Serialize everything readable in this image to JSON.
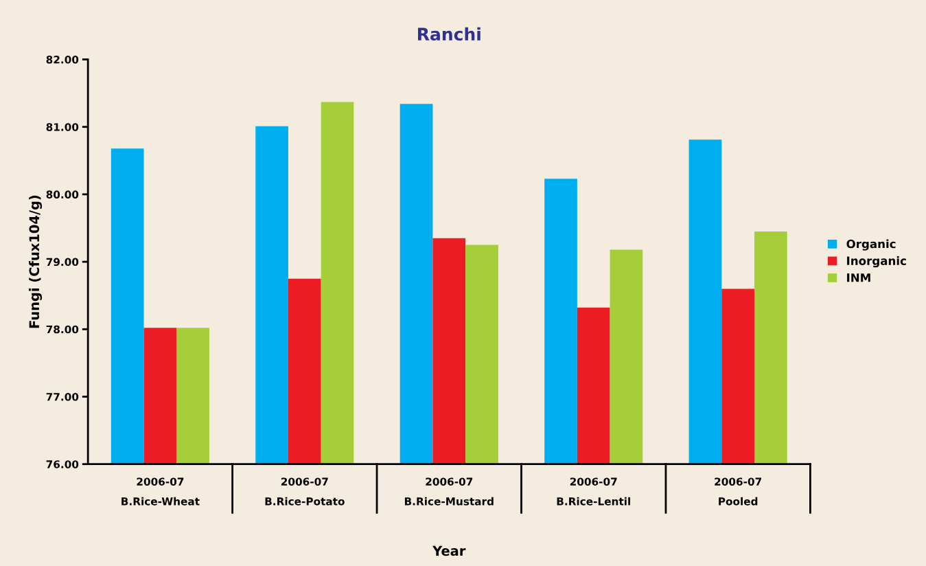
{
  "chart_data": {
    "type": "bar",
    "title": "Ranchi",
    "xlabel": "Year",
    "ylabel": "Fungi (Cfux104/g)",
    "categories": [
      "2006-07\nB.Rice-Wheat",
      "2006-07\nB.Rice-Potato",
      "2006-07\nB.Rice-Mustard",
      "2006-07\nB.Rice-Lentil",
      "2006-07\nPooled"
    ],
    "series": [
      {
        "name": "Organic",
        "color": "#00aeef",
        "values": [
          80.68,
          81.01,
          81.34,
          80.23,
          80.81
        ]
      },
      {
        "name": "Inorganic",
        "color": "#ed1c24",
        "values": [
          78.02,
          78.75,
          79.35,
          78.32,
          78.6
        ]
      },
      {
        "name": "INM",
        "color": "#a6ce39",
        "values": [
          78.02,
          81.37,
          79.25,
          79.18,
          79.45
        ]
      }
    ],
    "ylim": [
      76,
      82
    ],
    "yticks": [
      {
        "value": 76,
        "label": "76.00"
      },
      {
        "value": 77,
        "label": "77.00"
      },
      {
        "value": 78,
        "label": "78.00"
      },
      {
        "value": 79,
        "label": "79.00"
      },
      {
        "value": 80,
        "label": "80.00"
      },
      {
        "value": 81,
        "label": "81.00"
      },
      {
        "value": 82,
        "label": "82.00"
      }
    ],
    "grid": false,
    "legend": "right"
  }
}
